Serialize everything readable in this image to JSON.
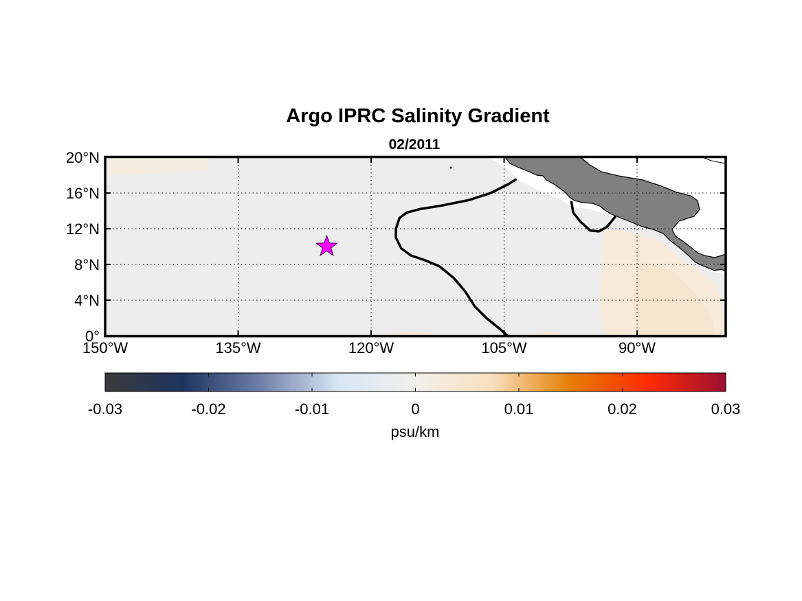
{
  "title": "Argo IPRC Salinity Gradient",
  "subtitle": "02/2011",
  "map": {
    "lon_range": [
      -150,
      -80
    ],
    "lat_range": [
      0,
      20
    ],
    "grid": true,
    "x_ticks": [
      {
        "value": -150,
        "label": "150°W"
      },
      {
        "value": -135,
        "label": "135°W"
      },
      {
        "value": -120,
        "label": "120°W"
      },
      {
        "value": -105,
        "label": "105°W"
      },
      {
        "value": -90,
        "label": "90°W"
      }
    ],
    "y_ticks": [
      {
        "value": 0,
        "label": "0°"
      },
      {
        "value": 4,
        "label": "4°N"
      },
      {
        "value": 8,
        "label": "8°N"
      },
      {
        "value": 12,
        "label": "12°N"
      },
      {
        "value": 16,
        "label": "16°N"
      },
      {
        "value": 20,
        "label": "20°N"
      }
    ],
    "marker": {
      "symbol": "star",
      "lon": -125,
      "lat": 10,
      "color": "#ff00ff"
    },
    "contours": [
      {
        "points": [
          [
            -103.7,
            17.5
          ],
          [
            -104.5,
            17
          ],
          [
            -106.5,
            16
          ],
          [
            -109,
            15.2
          ],
          [
            -112,
            14.6
          ],
          [
            -114.5,
            14.2
          ],
          [
            -116,
            13.8
          ],
          [
            -116.8,
            13.2
          ],
          [
            -117.2,
            12
          ],
          [
            -117.2,
            11
          ],
          [
            -116.6,
            9.8
          ],
          [
            -115.5,
            9
          ],
          [
            -114,
            8.5
          ],
          [
            -112.3,
            7.8
          ],
          [
            -110.7,
            6.5
          ],
          [
            -109.4,
            5
          ],
          [
            -108.3,
            3.3
          ],
          [
            -107,
            2
          ],
          [
            -105.5,
            0.8
          ],
          [
            -104.6,
            0
          ]
        ]
      },
      {
        "points": [
          [
            -97.4,
            15
          ],
          [
            -97.2,
            13.8
          ],
          [
            -96.4,
            12.8
          ],
          [
            -95.3,
            11.8
          ],
          [
            -94.3,
            11.7
          ],
          [
            -93.4,
            12.2
          ],
          [
            -92.5,
            13.3
          ]
        ]
      }
    ],
    "land_color": "#808080",
    "ocean_color": "#ededed"
  },
  "colorbar": {
    "range": [
      -0.03,
      0.03
    ],
    "ticks": [
      {
        "value": -0.03,
        "label": "-0.03"
      },
      {
        "value": -0.02,
        "label": "-0.02"
      },
      {
        "value": -0.01,
        "label": "-0.01"
      },
      {
        "value": 0,
        "label": "0"
      },
      {
        "value": 0.01,
        "label": "0.01"
      },
      {
        "value": 0.02,
        "label": "0.02"
      },
      {
        "value": 0.03,
        "label": "0.03"
      }
    ],
    "label": "psu/km",
    "colors": [
      "#3b3b3b",
      "#1e3360",
      "#6e7fa8",
      "#d8e6f4",
      "#f2f0ec",
      "#f8dfbd",
      "#e67d00",
      "#ff2a00",
      "#9c1035"
    ]
  }
}
